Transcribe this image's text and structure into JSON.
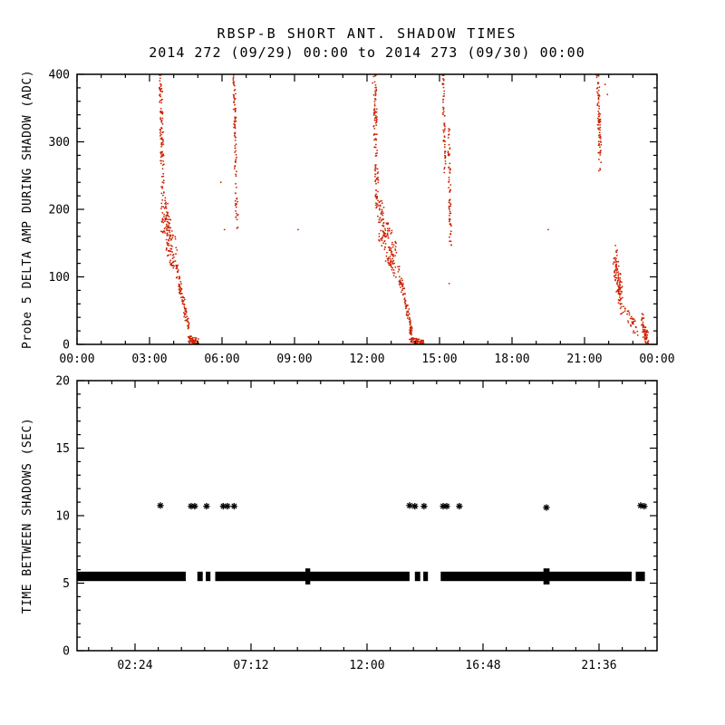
{
  "page": {
    "background": "#ffffff"
  },
  "chart_data": [
    {
      "type": "scatter",
      "panel": "top",
      "title": "RBSP-B SHORT ANT. SHADOW TIMES",
      "subtitle": "2014 272 (09/29) 00:00 to 2014 273 (09/30) 00:00",
      "ylabel": "Probe 5 DELTA AMP DURING SHADOW (ADC)",
      "xlabel": "",
      "marker": "dot",
      "marker_color": "#cc2200",
      "xlim": [
        0,
        24
      ],
      "ylim": [
        0,
        400
      ],
      "xticks": [
        {
          "v": 0,
          "label": "00:00"
        },
        {
          "v": 3,
          "label": "03:00"
        },
        {
          "v": 6,
          "label": "06:00"
        },
        {
          "v": 9,
          "label": "09:00"
        },
        {
          "v": 12,
          "label": "12:00"
        },
        {
          "v": 15,
          "label": "15:00"
        },
        {
          "v": 18,
          "label": "18:00"
        },
        {
          "v": 21,
          "label": "21:00"
        },
        {
          "v": 24,
          "label": "00:00"
        }
      ],
      "xminor": 1,
      "yticks": [
        {
          "v": 0,
          "label": "0"
        },
        {
          "v": 100,
          "label": "100"
        },
        {
          "v": 200,
          "label": "200"
        },
        {
          "v": 300,
          "label": "300"
        },
        {
          "v": 400,
          "label": "400"
        }
      ],
      "yminor": 20,
      "traces": [
        {
          "name": "shadow-1-entry-streak",
          "path": [
            [
              3.45,
              400
            ],
            [
              3.55,
              235
            ]
          ],
          "n": 100,
          "jitter": [
            0.07,
            12
          ]
        },
        {
          "name": "shadow-1-mid-cluster",
          "path": [
            [
              3.55,
              200
            ],
            [
              3.8,
              160
            ],
            [
              4.05,
              130
            ]
          ],
          "n": 140,
          "jitter": [
            0.1,
            30
          ]
        },
        {
          "name": "shadow-1-decay",
          "path": [
            [
              4.1,
              115
            ],
            [
              4.3,
              80
            ],
            [
              4.5,
              45
            ],
            [
              4.65,
              20
            ]
          ],
          "n": 90,
          "jitter": [
            0.05,
            10
          ]
        },
        {
          "name": "shadow-1-floor-tail",
          "path": [
            [
              4.6,
              8
            ],
            [
              5.0,
              4
            ]
          ],
          "n": 60,
          "jitter": [
            0.05,
            5
          ]
        },
        {
          "name": "shadow-2-streak",
          "path": [
            [
              6.5,
              400
            ],
            [
              6.55,
              300
            ],
            [
              6.62,
              175
            ]
          ],
          "n": 90,
          "jitter": [
            0.05,
            12
          ]
        },
        {
          "name": "shadow-3-entry-streak",
          "path": [
            [
              12.3,
              400
            ],
            [
              12.42,
              205
            ]
          ],
          "n": 110,
          "jitter": [
            0.07,
            12
          ]
        },
        {
          "name": "shadow-3-mid-cluster",
          "path": [
            [
              12.5,
              195
            ],
            [
              12.8,
              155
            ],
            [
              13.15,
              125
            ]
          ],
          "n": 150,
          "jitter": [
            0.1,
            30
          ]
        },
        {
          "name": "shadow-3-decay",
          "path": [
            [
              13.3,
              110
            ],
            [
              13.55,
              70
            ],
            [
              13.75,
              35
            ],
            [
              13.85,
              15
            ]
          ],
          "n": 90,
          "jitter": [
            0.05,
            10
          ]
        },
        {
          "name": "shadow-3-floor-tail",
          "path": [
            [
              13.8,
              7
            ],
            [
              14.3,
              3
            ]
          ],
          "n": 60,
          "jitter": [
            0.05,
            4
          ]
        },
        {
          "name": "shadow-4-streak-a",
          "path": [
            [
              15.15,
              400
            ],
            [
              15.22,
              255
            ]
          ],
          "n": 60,
          "jitter": [
            0.04,
            12
          ]
        },
        {
          "name": "shadow-4-streak-b",
          "path": [
            [
              15.38,
              320
            ],
            [
              15.45,
              160
            ]
          ],
          "n": 70,
          "jitter": [
            0.04,
            20
          ]
        },
        {
          "name": "shadow-5-entry-streak",
          "path": [
            [
              21.55,
              400
            ],
            [
              21.65,
              260
            ]
          ],
          "n": 80,
          "jitter": [
            0.06,
            14
          ]
        },
        {
          "name": "shadow-5-mid-cluster",
          "path": [
            [
              22.25,
              130
            ],
            [
              22.4,
              90
            ],
            [
              22.55,
              60
            ]
          ],
          "n": 110,
          "jitter": [
            0.07,
            22
          ]
        },
        {
          "name": "shadow-5-decay",
          "path": [
            [
              22.6,
              55
            ],
            [
              22.9,
              35
            ],
            [
              23.2,
              20
            ]
          ],
          "n": 35,
          "jitter": [
            0.06,
            10
          ]
        },
        {
          "name": "shadow-5-floor-cluster",
          "path": [
            [
              23.38,
              38
            ],
            [
              23.5,
              15
            ],
            [
              23.6,
              8
            ]
          ],
          "n": 60,
          "jitter": [
            0.05,
            10
          ]
        }
      ],
      "sparse_points": [
        [
          5.95,
          240
        ],
        [
          6.1,
          170
        ],
        [
          9.15,
          170
        ],
        [
          15.4,
          90
        ],
        [
          19.5,
          170
        ],
        [
          21.85,
          385
        ],
        [
          21.95,
          370
        ]
      ]
    },
    {
      "type": "scatter",
      "panel": "bottom",
      "ylabel": "TIME BETWEEN SHADOWS (SEC)",
      "xlabel": "",
      "marker": "asterisk",
      "marker_color": "#000000",
      "xlim": [
        0,
        24
      ],
      "ylim": [
        0,
        20
      ],
      "xticks": [
        {
          "v": 2.4,
          "label": "02:24"
        },
        {
          "v": 7.2,
          "label": "07:12"
        },
        {
          "v": 12,
          "label": "12:00"
        },
        {
          "v": 16.8,
          "label": "16:48"
        },
        {
          "v": 21.6,
          "label": "21:36"
        }
      ],
      "xminor": 0.96,
      "yticks": [
        {
          "v": 0,
          "label": "0"
        },
        {
          "v": 5,
          "label": "5"
        },
        {
          "v": 10,
          "label": "10"
        },
        {
          "v": 15,
          "label": "15"
        },
        {
          "v": 20,
          "label": "20"
        }
      ],
      "yminor": 1,
      "band": {
        "value": 5.5,
        "half_height": 0.35,
        "segments": [
          [
            0,
            4.5
          ],
          [
            4.98,
            5.2
          ],
          [
            5.33,
            5.52
          ],
          [
            5.72,
            13.76
          ],
          [
            13.98,
            14.2
          ],
          [
            14.33,
            14.52
          ],
          [
            15.05,
            22.95
          ],
          [
            23.12,
            23.5
          ]
        ],
        "thick_spots": [
          [
            9.45,
            9.65
          ],
          [
            19.3,
            19.55
          ]
        ]
      },
      "outliers": [
        [
          3.45,
          10.75
        ],
        [
          4.72,
          10.7
        ],
        [
          4.87,
          10.7
        ],
        [
          5.36,
          10.7
        ],
        [
          6.05,
          10.7
        ],
        [
          6.22,
          10.7
        ],
        [
          6.5,
          10.7
        ],
        [
          13.76,
          10.75
        ],
        [
          13.98,
          10.7
        ],
        [
          14.36,
          10.7
        ],
        [
          15.15,
          10.7
        ],
        [
          15.3,
          10.7
        ],
        [
          15.82,
          10.7
        ],
        [
          19.42,
          10.6
        ],
        [
          23.32,
          10.75
        ],
        [
          23.47,
          10.7
        ]
      ]
    }
  ]
}
